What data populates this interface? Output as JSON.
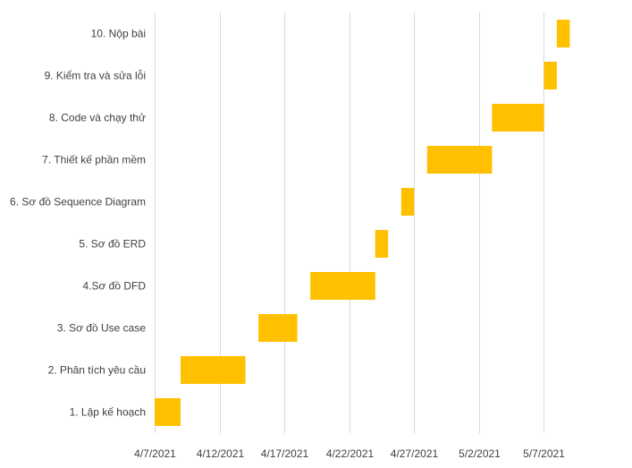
{
  "chart_data": {
    "type": "gantt",
    "title": "",
    "xlabel": "",
    "ylabel": "",
    "bar_color": "#FFC000",
    "grid": true,
    "legend": "none",
    "x_ticks": [
      "4/7/2021",
      "4/12/2021",
      "4/17/2021",
      "4/22/2021",
      "4/27/2021",
      "5/2/2021",
      "5/7/2021"
    ],
    "xlim": [
      "2021-04-07",
      "2021-05-12"
    ],
    "tasks": [
      {
        "label": "1. Lập kế hoạch",
        "start": "2021-04-07",
        "end": "2021-04-09"
      },
      {
        "label": "2. Phân tích yêu cầu",
        "start": "2021-04-09",
        "end": "2021-04-14"
      },
      {
        "label": "3. Sơ đồ Use case",
        "start": "2021-04-15",
        "end": "2021-04-18"
      },
      {
        "label": "4.Sơ đồ DFD",
        "start": "2021-04-19",
        "end": "2021-04-24"
      },
      {
        "label": "5. Sơ đồ ERD",
        "start": "2021-04-24",
        "end": "2021-04-25"
      },
      {
        "label": "6. Sơ đồ Sequence Diagram",
        "start": "2021-04-26",
        "end": "2021-04-27"
      },
      {
        "label": "7. Thiết kế phần mềm",
        "start": "2021-04-28",
        "end": "2021-05-03"
      },
      {
        "label": "8. Code và chạy thử",
        "start": "2021-05-03",
        "end": "2021-05-07"
      },
      {
        "label": "9. Kiểm tra và sửa lỗi",
        "start": "2021-05-07",
        "end": "2021-05-08"
      },
      {
        "label": "10. Nộp bài",
        "start": "2021-05-08",
        "end": "2021-05-09"
      }
    ]
  }
}
